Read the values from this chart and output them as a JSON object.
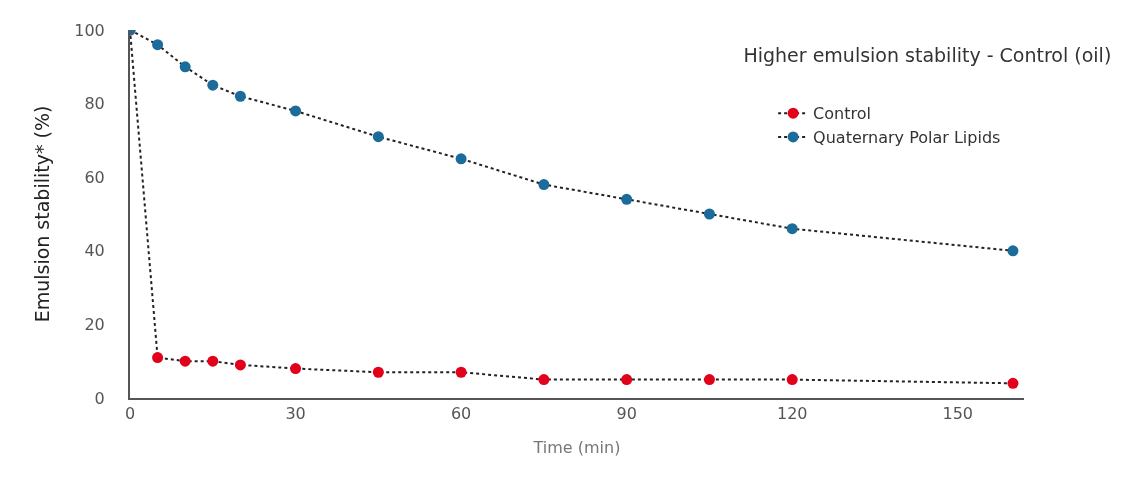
{
  "chart_data": {
    "type": "line",
    "title": "Higher emulsion stability - Control (oil)",
    "xlabel": "Time (min)",
    "ylabel": "Emulsion stability* (%)",
    "x": [
      0,
      5,
      10,
      15,
      20,
      30,
      45,
      60,
      75,
      90,
      105,
      120,
      160
    ],
    "series": [
      {
        "name": "Control",
        "color": "#e2001a",
        "values": [
          100,
          11,
          10,
          10,
          9,
          8,
          7,
          7,
          5,
          5,
          5,
          5,
          4
        ]
      },
      {
        "name": "Quaternary Polar Lipids",
        "color": "#1b6c9b",
        "values": [
          100,
          96,
          90,
          85,
          82,
          78,
          71,
          65,
          58,
          54,
          50,
          46,
          40
        ]
      }
    ],
    "xlim": [
      0,
      162
    ],
    "xticks": [
      0,
      30,
      60,
      90,
      120,
      150
    ],
    "ylim": [
      0,
      100
    ],
    "yticks": [
      0,
      20,
      40,
      60,
      80,
      100
    ],
    "grid": false,
    "legend": "top right",
    "marker": "circle",
    "line_style": "dotted"
  }
}
